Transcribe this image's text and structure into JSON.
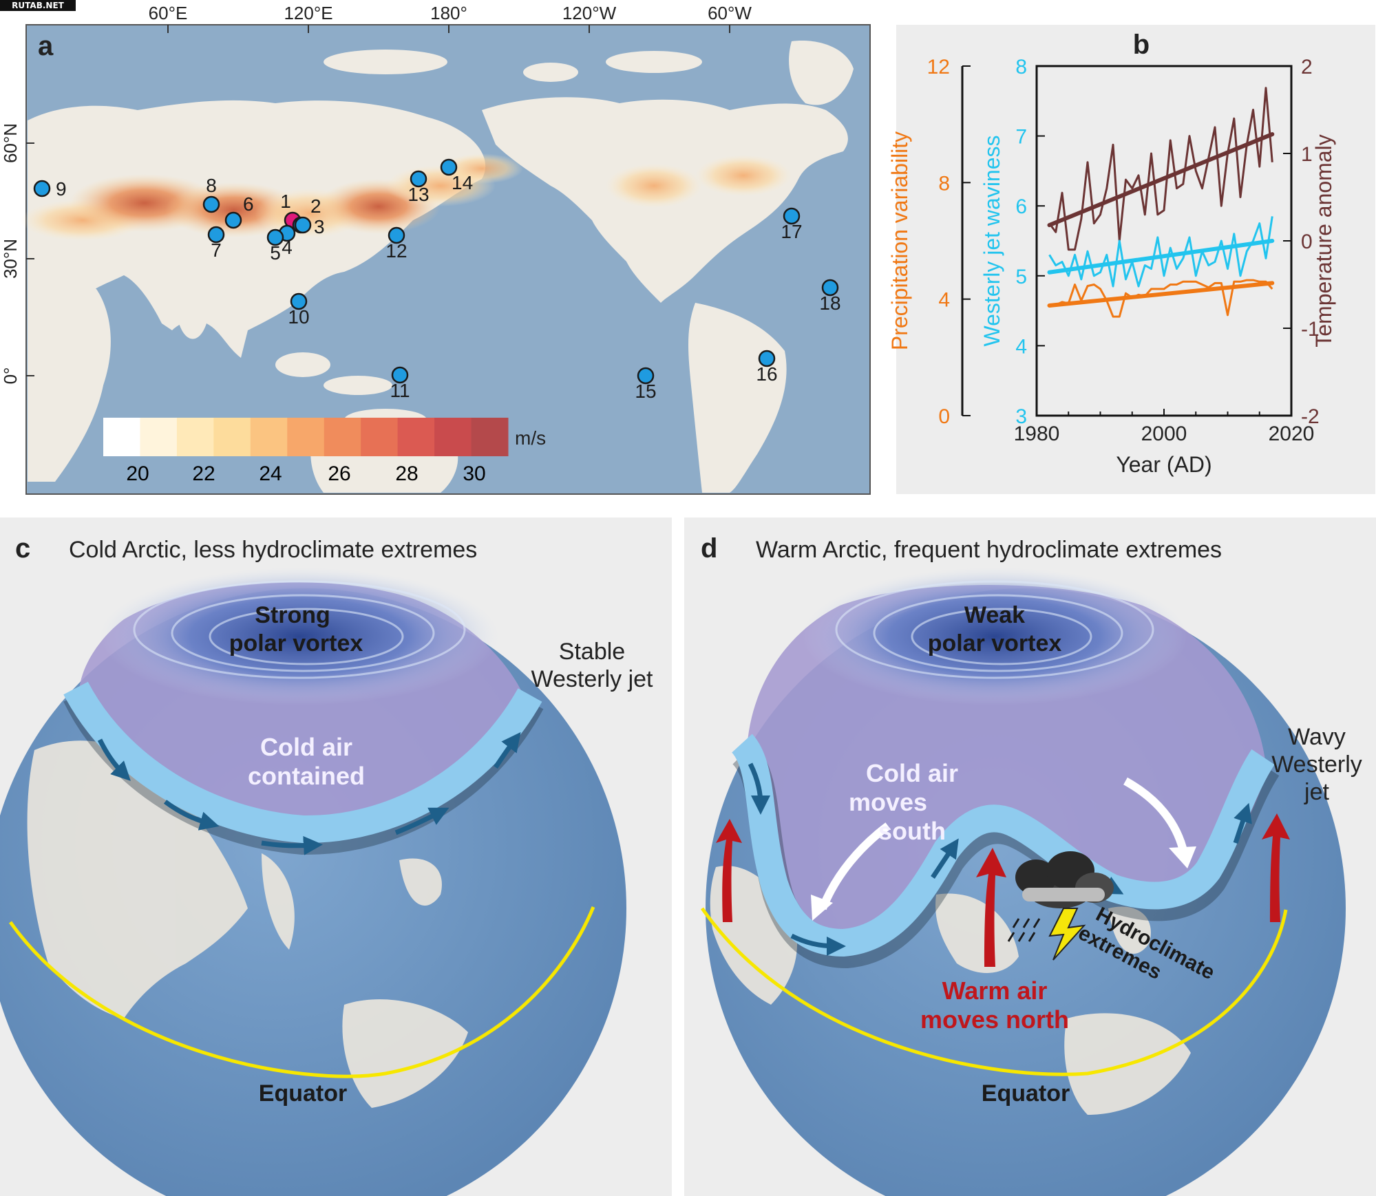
{
  "watermark": "RUTAB.NET",
  "panel_a": {
    "letter": "a",
    "lon_labels": [
      "60°E",
      "120°E",
      "180°",
      "120°W",
      "60°W"
    ],
    "lat_labels": [
      "60°N",
      "30°N",
      "0°"
    ],
    "sites": [
      "1",
      "2",
      "3",
      "4",
      "5",
      "6",
      "7",
      "8",
      "9",
      "10",
      "11",
      "12",
      "13",
      "14",
      "15",
      "16",
      "17",
      "18"
    ],
    "highlight_site": "1",
    "site_color": "#1f9be0",
    "highlight_color": "#e0197a",
    "colorbar": {
      "ticks": [
        "20",
        "22",
        "24",
        "26",
        "28",
        "30"
      ],
      "unit": "m/s",
      "colors": [
        "#ffffff",
        "#fff4dc",
        "#ffe9b8",
        "#fddc9c",
        "#fbc481",
        "#f7a76a",
        "#f08c5c",
        "#e77155",
        "#db5a52",
        "#c94b4d",
        "#b4494b"
      ]
    }
  },
  "panel_b": {
    "letter": "b",
    "chart_data": {
      "type": "line",
      "x_ticks": [
        "1980",
        "2000",
        "2020"
      ],
      "xlabel": "Year (AD)",
      "xlim": [
        1980,
        2020
      ],
      "axes": [
        {
          "label": "Precipitation variability",
          "ticks": [
            "0",
            "4",
            "8",
            "12"
          ],
          "ylim": [
            0,
            12
          ],
          "color": "#f07814"
        },
        {
          "label": "Westerly jet waviness",
          "ticks": [
            "3",
            "4",
            "5",
            "6",
            "7",
            "8"
          ],
          "ylim": [
            3,
            8
          ],
          "color": "#22c4ee"
        },
        {
          "label": "Temperature anomaly",
          "ticks": [
            "-2",
            "-1",
            "0",
            "1",
            "2"
          ],
          "ylim": [
            -2,
            2
          ],
          "color": "#6b3434"
        }
      ],
      "series": [
        {
          "axis": 2,
          "color": "#6b3434",
          "x": [
            1982,
            1983,
            1984,
            1985,
            1986,
            1987,
            1988,
            1989,
            1990,
            1991,
            1992,
            1993,
            1994,
            1995,
            1996,
            1997,
            1998,
            1999,
            2000,
            2001,
            2002,
            2003,
            2004,
            2005,
            2006,
            2007,
            2008,
            2009,
            2010,
            2011,
            2012,
            2013,
            2014,
            2015,
            2016,
            2017
          ],
          "y": [
            0.2,
            0.1,
            0.55,
            -0.1,
            -0.1,
            0.25,
            0.9,
            0.2,
            0.3,
            0.6,
            1.1,
            0.0,
            0.7,
            0.6,
            0.75,
            0.3,
            1.0,
            0.3,
            0.35,
            1.15,
            0.6,
            0.65,
            1.2,
            0.8,
            0.6,
            0.95,
            1.3,
            0.4,
            1.0,
            1.4,
            0.5,
            1.1,
            1.5,
            0.85,
            1.75,
            0.9
          ],
          "trend": [
            [
              1982,
              0.18
            ],
            [
              2017,
              1.22
            ]
          ]
        },
        {
          "axis": 1,
          "color": "#22c4ee",
          "x": [
            1982,
            1983,
            1984,
            1985,
            1986,
            1987,
            1988,
            1989,
            1990,
            1991,
            1992,
            1993,
            1994,
            1995,
            1996,
            1997,
            1998,
            1999,
            2000,
            2001,
            2002,
            2003,
            2004,
            2005,
            2006,
            2007,
            2008,
            2009,
            2010,
            2011,
            2012,
            2013,
            2014,
            2015,
            2016,
            2017
          ],
          "y": [
            5.3,
            5.15,
            5.2,
            5.0,
            5.3,
            4.95,
            5.35,
            5.0,
            5.05,
            5.3,
            4.85,
            5.5,
            4.95,
            5.2,
            4.85,
            5.15,
            5.1,
            5.55,
            5.0,
            5.4,
            5.1,
            5.25,
            5.55,
            5.0,
            5.35,
            5.15,
            5.2,
            5.5,
            5.1,
            5.6,
            5.0,
            5.35,
            5.5,
            5.75,
            5.25,
            5.85
          ],
          "trend": [
            [
              1982,
              5.05
            ],
            [
              2017,
              5.5
            ]
          ]
        },
        {
          "axis": 0,
          "color": "#f07814",
          "x": [
            1982,
            1983,
            1984,
            1985,
            1986,
            1987,
            1988,
            1989,
            1990,
            1991,
            1992,
            1993,
            1994,
            1995,
            1996,
            1997,
            1998,
            1999,
            2000,
            2001,
            2002,
            2003,
            2004,
            2005,
            2006,
            2007,
            2008,
            2009,
            2010,
            2011,
            2012,
            2013,
            2014,
            2015,
            2016,
            2017
          ],
          "y": [
            3.8,
            3.8,
            3.9,
            3.85,
            4.5,
            3.95,
            4.45,
            4.5,
            4.35,
            3.95,
            3.4,
            3.4,
            4.2,
            4.05,
            4.15,
            4.1,
            4.35,
            4.35,
            4.35,
            4.5,
            4.5,
            4.6,
            4.6,
            4.6,
            4.5,
            4.4,
            4.55,
            4.55,
            3.45,
            4.6,
            4.6,
            4.65,
            4.65,
            4.6,
            4.6,
            4.35
          ],
          "trend": [
            [
              1982,
              3.78
            ],
            [
              2017,
              4.55
            ]
          ]
        }
      ]
    }
  },
  "panel_c": {
    "letter": "c",
    "title": "Cold Arctic, less hydroclimate extremes",
    "vortex": [
      "Strong",
      "polar vortex"
    ],
    "jet": [
      "Stable",
      "Westerly jet"
    ],
    "cold_air": [
      "Cold air",
      "contained"
    ],
    "equator": "Equator"
  },
  "panel_d": {
    "letter": "d",
    "title": "Warm Arctic, frequent hydroclimate extremes",
    "vortex": [
      "Weak",
      "polar vortex"
    ],
    "jet": [
      "Wavy",
      "Westerly",
      "jet"
    ],
    "cold_air": [
      "Cold air",
      "moves",
      "south"
    ],
    "warm_air": [
      "Warm air",
      "moves north"
    ],
    "extremes": [
      "Hydroclimate",
      "extremes"
    ],
    "equator": "Equator"
  }
}
